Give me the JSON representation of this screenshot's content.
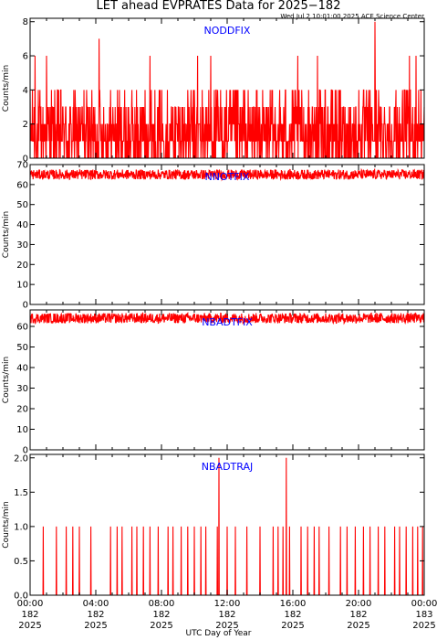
{
  "title": "LET ahead EVPRATES Data for 2025−182",
  "timestamp": "Wed Jul  2 10:01:00 2025 ACE Science Center",
  "chart_data": {
    "type": "line",
    "xlabel": "UTC Day of Year",
    "x_range_hours": [
      0,
      24
    ],
    "x_ticks": [
      {
        "hour": 0,
        "time": "00:00",
        "doy": "182",
        "year": "2025"
      },
      {
        "hour": 4,
        "time": "04:00",
        "doy": "182",
        "year": "2025"
      },
      {
        "hour": 8,
        "time": "08:00",
        "doy": "182",
        "year": "2025"
      },
      {
        "hour": 12,
        "time": "12:00",
        "doy": "182",
        "year": "2025"
      },
      {
        "hour": 16,
        "time": "16:00",
        "doy": "182",
        "year": "2025"
      },
      {
        "hour": 20,
        "time": "20:00",
        "doy": "182",
        "year": "2025"
      },
      {
        "hour": 24,
        "time": "00:00",
        "doy": "183",
        "year": "2025"
      }
    ],
    "line_color": "#ff0000",
    "label_color": "#0000ff",
    "panels": [
      {
        "label": "NODDFIX",
        "ylabel": "Counts/min",
        "ylim": [
          0,
          8.2
        ],
        "yticks": [
          0,
          2,
          4,
          6,
          8
        ],
        "pattern": "dense_noise",
        "level_values": [
          0,
          1,
          2,
          3,
          4
        ],
        "level_weights": [
          0.24,
          0.3,
          0.22,
          0.16,
          0.08
        ],
        "spikes": [
          {
            "hour": 0.3,
            "value": 6
          },
          {
            "hour": 1.0,
            "value": 6
          },
          {
            "hour": 4.2,
            "value": 7
          },
          {
            "hour": 7.3,
            "value": 6
          },
          {
            "hour": 10.2,
            "value": 6
          },
          {
            "hour": 11.0,
            "value": 6
          },
          {
            "hour": 16.3,
            "value": 6
          },
          {
            "hour": 17.5,
            "value": 6
          },
          {
            "hour": 21.0,
            "value": 8
          },
          {
            "hour": 23.1,
            "value": 6
          },
          {
            "hour": 23.5,
            "value": 6
          }
        ]
      },
      {
        "label": "NNOTFIX",
        "ylabel": "Counts/min",
        "ylim": [
          0,
          70
        ],
        "yticks": [
          0,
          10,
          20,
          30,
          40,
          50,
          60,
          70
        ],
        "pattern": "band",
        "baseline": 65,
        "spread": 2.5
      },
      {
        "label": "NBADTFIX",
        "ylabel": "Counts/min",
        "ylim": [
          0,
          68
        ],
        "yticks": [
          0,
          10,
          20,
          30,
          40,
          50,
          60
        ],
        "pattern": "band",
        "baseline": 64,
        "spread": 2.5
      },
      {
        "label": "NBADTRAJ",
        "ylabel": "Counts/min",
        "ylim": [
          0,
          2.05
        ],
        "yticks": [
          0.0,
          0.5,
          1.0,
          1.5,
          2.0
        ],
        "ytick_labels": [
          "0.0",
          "0.5",
          "1.0",
          "1.5",
          "2.0"
        ],
        "pattern": "sparse",
        "one_hours": [
          0.8,
          1.6,
          2.2,
          2.6,
          3.0,
          3.7,
          4.9,
          5.3,
          5.6,
          6.2,
          6.5,
          6.9,
          7.3,
          7.8,
          8.4,
          8.7,
          9.2,
          9.6,
          10.0,
          10.4,
          10.7,
          11.4,
          12.0,
          12.5,
          13.2,
          14.0,
          14.8,
          15.1,
          15.4,
          15.8,
          16.5,
          16.9,
          17.3,
          17.6,
          18.2,
          18.9,
          19.3,
          19.8,
          20.3,
          20.7,
          21.2,
          21.6,
          22.2,
          22.5,
          22.9,
          23.3,
          23.6,
          23.9
        ],
        "two_hours": [
          11.5,
          15.6
        ]
      }
    ]
  }
}
